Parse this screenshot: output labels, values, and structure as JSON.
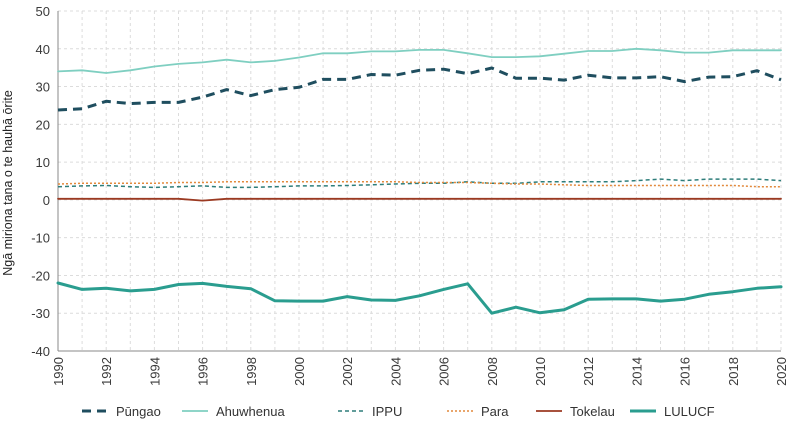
{
  "chart_data": {
    "type": "line",
    "title": "",
    "xlabel": "",
    "ylabel": "Ngā miriona tana o te hauhā ōrite",
    "xlim": [
      1990,
      2020
    ],
    "ylim": [
      -40,
      50
    ],
    "x_ticks": [
      1990,
      1992,
      1994,
      1996,
      1998,
      2000,
      2002,
      2004,
      2006,
      2008,
      2010,
      2012,
      2014,
      2016,
      2018,
      2020
    ],
    "y_ticks": [
      -40,
      -30,
      -20,
      -10,
      0,
      10,
      20,
      30,
      40,
      50
    ],
    "grid": "both",
    "legend_position": "bottom",
    "x": [
      1990,
      1991,
      1992,
      1993,
      1994,
      1995,
      1996,
      1997,
      1998,
      1999,
      2000,
      2001,
      2002,
      2003,
      2004,
      2005,
      2006,
      2007,
      2008,
      2009,
      2010,
      2011,
      2012,
      2013,
      2014,
      2015,
      2016,
      2017,
      2018,
      2019,
      2020
    ],
    "series": [
      {
        "name": "Pūngao",
        "color": "#1f4e5f",
        "style": "dashed-thick",
        "values": [
          23.8,
          24.1,
          26.1,
          25.5,
          25.8,
          25.8,
          27.2,
          29.2,
          27.6,
          29.2,
          29.8,
          31.9,
          31.9,
          33.2,
          33.0,
          34.3,
          34.6,
          33.4,
          34.9,
          32.2,
          32.2,
          31.7,
          33.0,
          32.3,
          32.3,
          32.6,
          31.3,
          32.5,
          32.6,
          34.2,
          31.8
        ]
      },
      {
        "name": "Ahuwhenua",
        "color": "#7fcfc1",
        "style": "solid",
        "values": [
          34.0,
          34.3,
          33.6,
          34.3,
          35.3,
          36.0,
          36.4,
          37.1,
          36.4,
          36.8,
          37.7,
          38.8,
          38.8,
          39.3,
          39.3,
          39.7,
          39.7,
          38.8,
          37.8,
          37.8,
          38.0,
          38.7,
          39.4,
          39.4,
          40.0,
          39.6,
          39.0,
          39.0,
          39.6,
          39.6,
          39.6
        ]
      },
      {
        "name": "IPPU",
        "color": "#2e7d7a",
        "style": "dashed-thin",
        "values": [
          3.5,
          3.7,
          3.8,
          3.5,
          3.3,
          3.5,
          3.7,
          3.3,
          3.3,
          3.5,
          3.7,
          3.7,
          3.8,
          4.0,
          4.2,
          4.4,
          4.4,
          4.8,
          4.4,
          4.4,
          4.8,
          4.8,
          4.8,
          4.8,
          5.1,
          5.5,
          5.1,
          5.5,
          5.5,
          5.5,
          5.1
        ]
      },
      {
        "name": "Para",
        "color": "#e2893c",
        "style": "dotted",
        "values": [
          4.2,
          4.4,
          4.4,
          4.4,
          4.4,
          4.6,
          4.6,
          4.8,
          4.8,
          4.8,
          4.8,
          4.8,
          4.8,
          4.8,
          4.8,
          4.6,
          4.6,
          4.6,
          4.4,
          4.2,
          4.2,
          4.0,
          3.8,
          3.8,
          3.8,
          3.8,
          3.8,
          3.8,
          3.8,
          3.5,
          3.5
        ]
      },
      {
        "name": "Tokelau",
        "color": "#9b3a22",
        "style": "solid",
        "values": [
          0.3,
          0.3,
          0.3,
          0.3,
          0.3,
          0.3,
          -0.2,
          0.3,
          0.3,
          0.3,
          0.3,
          0.3,
          0.3,
          0.3,
          0.3,
          0.3,
          0.3,
          0.3,
          0.3,
          0.3,
          0.3,
          0.3,
          0.3,
          0.3,
          0.3,
          0.3,
          0.3,
          0.3,
          0.3,
          0.3,
          0.3
        ]
      },
      {
        "name": "LULUCF",
        "color": "#2a9d8f",
        "style": "solid-thick",
        "values": [
          -22.0,
          -23.7,
          -23.4,
          -24.1,
          -23.7,
          -22.4,
          -22.1,
          -22.9,
          -23.5,
          -26.7,
          -26.8,
          -26.8,
          -25.6,
          -26.5,
          -26.6,
          -25.4,
          -23.7,
          -22.2,
          -30.0,
          -28.4,
          -29.9,
          -29.1,
          -26.3,
          -26.2,
          -26.2,
          -26.8,
          -26.3,
          -25.0,
          -24.3,
          -23.4,
          -23.0
        ]
      }
    ]
  }
}
